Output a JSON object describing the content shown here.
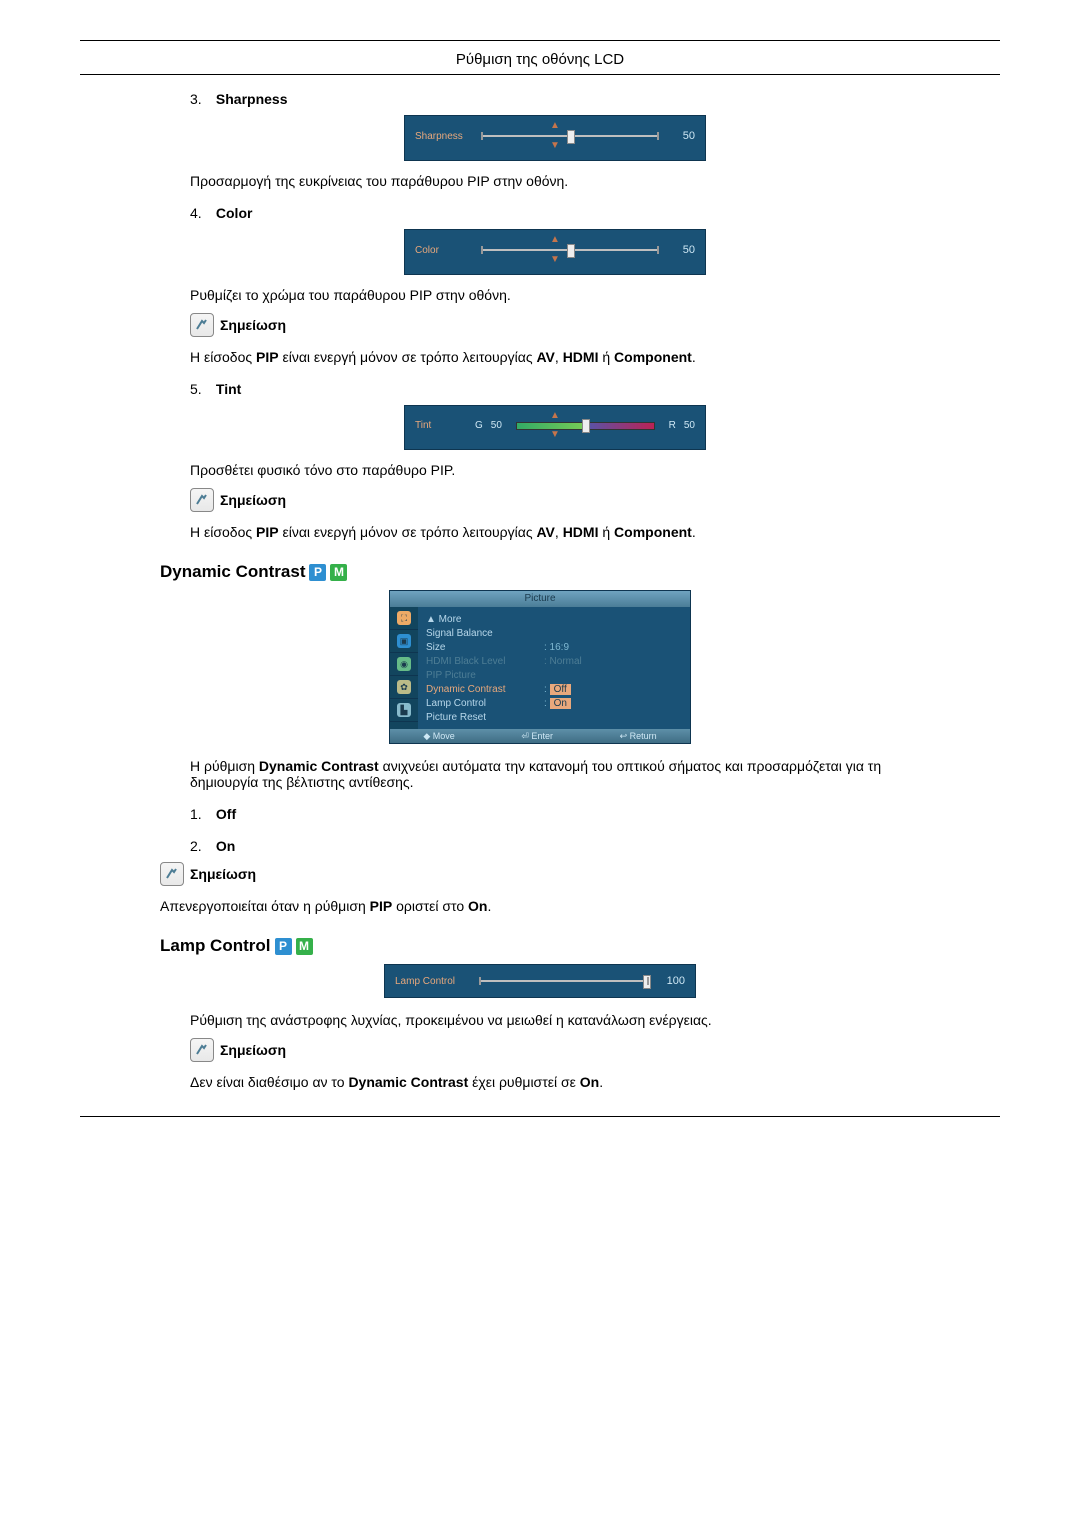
{
  "header": {
    "title": "Ρύθμιση της οθόνης LCD"
  },
  "sharpness": {
    "num": "3.",
    "label": "Sharpness",
    "osd_label": "Sharpness",
    "value": "50",
    "thumb_pct": 50,
    "desc": "Προσαρμογή της ευκρίνειας του παράθυρου PIP στην οθόνη.",
    "colors": {
      "panel": "#1a5276",
      "label": "#e8a87c",
      "value": "#cfe8f5"
    }
  },
  "color": {
    "num": "4.",
    "label": "Color",
    "osd_label": "Color",
    "value": "50",
    "thumb_pct": 50,
    "desc": "Ρυθμίζει το χρώμα του παράθυρου PIP στην οθόνη.",
    "note_title": "Σημείωση",
    "note_pre": "Η είσοδος ",
    "note_b1": "PIP",
    "note_mid": " είναι ενεργή μόνον σε τρόπο λειτουργίας ",
    "note_b2": "AV",
    "note_c1": ", ",
    "note_b3": "HDMI",
    "note_c2": " ή ",
    "note_b4": "Component",
    "note_end": "."
  },
  "tint": {
    "num": "5.",
    "label": "Tint",
    "osd_label": "Tint",
    "g_label": "G",
    "g_val": "50",
    "r_label": "R",
    "r_val": "50",
    "thumb_pct": 50,
    "desc": "Προσθέτει φυσικό τόνο στο παράθυρο PIP.",
    "note_title": "Σημείωση",
    "note_pre": "Η είσοδος ",
    "note_b1": "PIP",
    "note_mid": " είναι ενεργή μόνον σε τρόπο λειτουργίας ",
    "note_b2": "AV",
    "note_c1": ", ",
    "note_b3": "HDMI",
    "note_c2": " ή ",
    "note_b4": "Component",
    "note_end": "."
  },
  "dynamic": {
    "title": "Dynamic Contrast",
    "menu": {
      "bar": "Picture",
      "items": [
        {
          "k": "▲ More",
          "v": ""
        },
        {
          "k": "Signal Balance",
          "v": ""
        },
        {
          "k": "Size",
          "v": ": 16:9"
        },
        {
          "k": "HDMI Black Level",
          "v": ": Normal",
          "muted": true
        },
        {
          "k": "PIP Picture",
          "v": "",
          "muted": true
        },
        {
          "k": "Dynamic Contrast",
          "v": "Off",
          "sel": true,
          "orange": true
        },
        {
          "k": "Lamp Control",
          "v": "On",
          "sel": true
        },
        {
          "k": "Picture Reset",
          "v": ""
        }
      ],
      "foot": [
        "◆ Move",
        "⏎ Enter",
        "↩ Return"
      ]
    },
    "desc_pre": "Η ρύθμιση ",
    "desc_b": "Dynamic Contrast",
    "desc_post": " ανιχνεύει αυτόματα την κατανομή του οπτικού σήματος και προσαρμόζεται για τη δημιουργία της βέλτιστης αντίθεσης.",
    "opt1_num": "1.",
    "opt1": "Off",
    "opt2_num": "2.",
    "opt2": "On",
    "note_title": "Σημείωση",
    "note_pre": "Απενεργοποιείται όταν η ρύθμιση ",
    "note_b1": "PIP",
    "note_mid": " οριστεί στο ",
    "note_b2": "On",
    "note_end": "."
  },
  "lamp": {
    "title": "Lamp Control",
    "osd_label": "Lamp Control",
    "value": "100",
    "thumb_pct": 100,
    "desc": "Ρύθμιση της ανάστροφης λυχνίας, προκειμένου να μειωθεί η κατανάλωση ενέργειas.",
    "desc_fix": "Ρύθμιση της ανάστροφης λυχνίας, προκειμένου να μειωθεί η κατανάλωση ενέργειας.",
    "note_title": "Σημείωση",
    "note_pre": "Δεν είναι διαθέσιμο αν το ",
    "note_b1": "Dynamic Contrast",
    "note_mid": " έχει ρυθμιστεί σε ",
    "note_b2": "On",
    "note_end": "."
  },
  "badges": {
    "p": "P",
    "m": "M"
  }
}
